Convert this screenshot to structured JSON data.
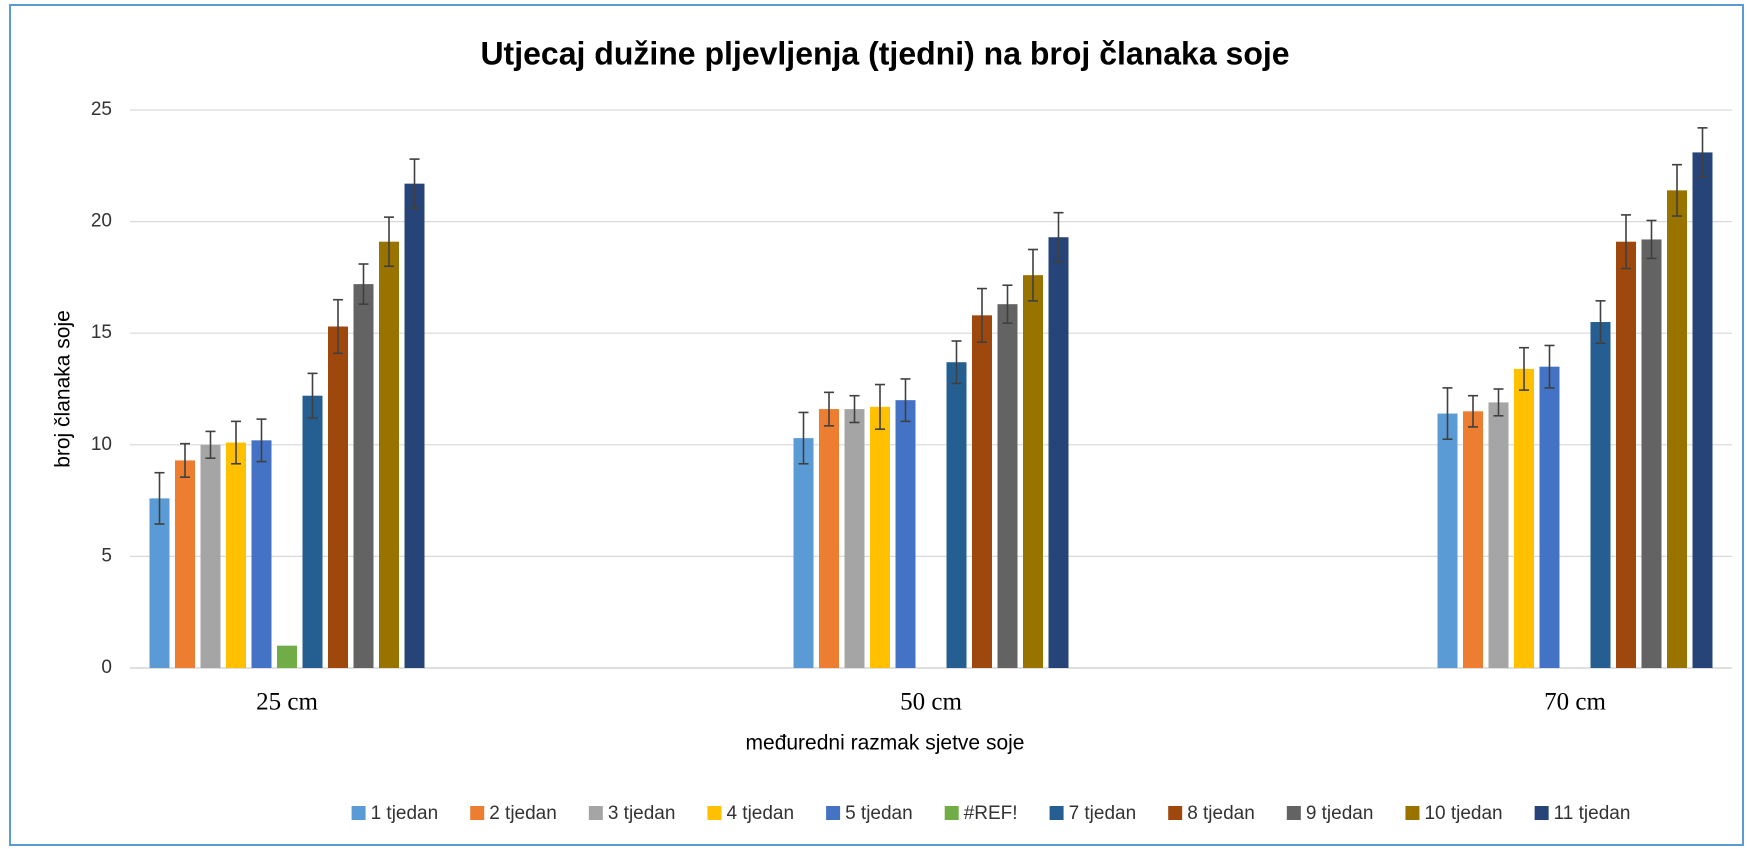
{
  "chart_data": {
    "type": "bar",
    "title": "Utjecaj dužine plјevlјenja (tjedni) na broj članaka soje",
    "x_label": "međuredni razmak sjetve soje",
    "y_label": "broj članaka soje",
    "categories": [
      "25 cm",
      "50 cm",
      "70 cm"
    ],
    "ylim": [
      0,
      25
    ],
    "yticks": [
      0,
      5,
      10,
      15,
      20,
      25
    ],
    "grid": true,
    "legend": "bottom",
    "series": [
      {
        "name": "1 tjedan",
        "color": "#5b9bd5",
        "values": [
          7.6,
          10.3,
          11.4
        ],
        "errors": [
          1.15,
          1.15,
          1.15
        ]
      },
      {
        "name": "2 tjedan",
        "color": "#ed7d31",
        "values": [
          9.3,
          11.6,
          11.5
        ],
        "errors": [
          0.75,
          0.75,
          0.7
        ]
      },
      {
        "name": "3 tjedan",
        "color": "#a5a5a5",
        "values": [
          10.0,
          11.6,
          11.9
        ],
        "errors": [
          0.6,
          0.6,
          0.6
        ]
      },
      {
        "name": "4 tjedan",
        "color": "#ffc000",
        "values": [
          10.1,
          11.7,
          13.4
        ],
        "errors": [
          0.95,
          1.0,
          0.95
        ]
      },
      {
        "name": "5 tjedan",
        "color": "#4472c4",
        "values": [
          10.2,
          12.0,
          13.5
        ],
        "errors": [
          0.95,
          0.95,
          0.95
        ]
      },
      {
        "name": "#REF!",
        "color": "#70ad47",
        "values": [
          1.0,
          null,
          null
        ]
      },
      {
        "name": "7 tjedan",
        "color": "#255e91",
        "values": [
          12.2,
          13.7,
          15.5
        ],
        "errors": [
          1.0,
          0.95,
          0.95
        ]
      },
      {
        "name": "8 tjedan",
        "color": "#9e480e",
        "values": [
          15.3,
          15.8,
          19.1
        ],
        "errors": [
          1.2,
          1.2,
          1.2
        ]
      },
      {
        "name": "9 tjedan",
        "color": "#636363",
        "values": [
          17.2,
          16.3,
          19.2
        ],
        "errors": [
          0.9,
          0.85,
          0.85
        ]
      },
      {
        "name": "10 tjedan",
        "color": "#997300",
        "values": [
          19.1,
          17.6,
          21.4
        ],
        "errors": [
          1.1,
          1.15,
          1.15
        ]
      },
      {
        "name": "11 tjedan",
        "color": "#264478",
        "values": [
          21.7,
          19.3,
          23.1
        ],
        "errors": [
          1.1,
          1.1,
          1.1
        ]
      }
    ]
  }
}
